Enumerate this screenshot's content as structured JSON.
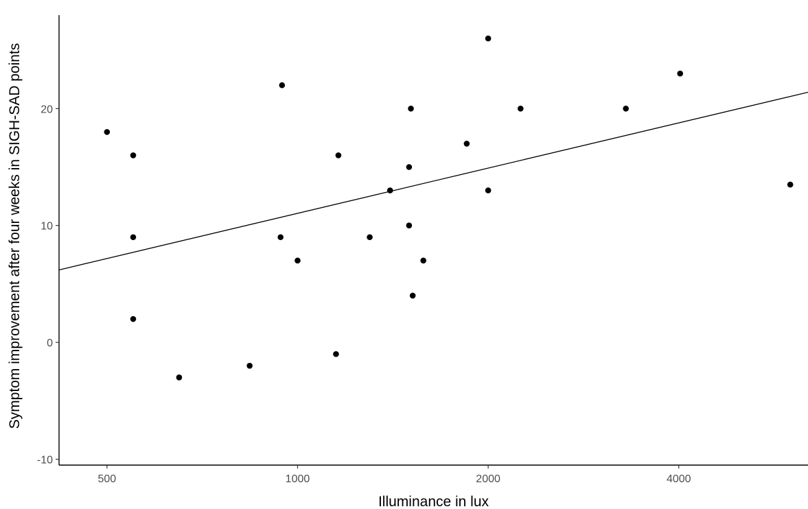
{
  "chart_data": {
    "type": "scatter",
    "title": "",
    "xlabel": "Illuminance in lux",
    "ylabel": "Symptom improvement after four weeks in SIGH-SAD points",
    "x_scale": "log2",
    "xlim": [
      420,
      6400
    ],
    "ylim": [
      -10.5,
      28
    ],
    "x_ticks": [
      500,
      1000,
      2000,
      4000
    ],
    "x_tick_labels": [
      "500",
      "1000",
      "2000",
      "4000"
    ],
    "y_ticks": [
      -10,
      0,
      10,
      20
    ],
    "y_tick_labels": [
      "-10",
      "0",
      "10",
      "20"
    ],
    "grid": false,
    "legend": "none",
    "point_color": "#000000",
    "line_color": "#000000",
    "points": [
      {
        "x": 500,
        "y": 18
      },
      {
        "x": 550,
        "y": 16
      },
      {
        "x": 550,
        "y": 9
      },
      {
        "x": 550,
        "y": 2
      },
      {
        "x": 650,
        "y": -3
      },
      {
        "x": 840,
        "y": -2
      },
      {
        "x": 945,
        "y": 22
      },
      {
        "x": 940,
        "y": 9
      },
      {
        "x": 1000,
        "y": 7
      },
      {
        "x": 1160,
        "y": 16
      },
      {
        "x": 1150,
        "y": -1
      },
      {
        "x": 1300,
        "y": 9
      },
      {
        "x": 1400,
        "y": 13
      },
      {
        "x": 1500,
        "y": 15
      },
      {
        "x": 1510,
        "y": 20
      },
      {
        "x": 1500,
        "y": 10
      },
      {
        "x": 1520,
        "y": 4
      },
      {
        "x": 1580,
        "y": 7
      },
      {
        "x": 1850,
        "y": 17
      },
      {
        "x": 2000,
        "y": 26
      },
      {
        "x": 2000,
        "y": 13
      },
      {
        "x": 2250,
        "y": 20
      },
      {
        "x": 3300,
        "y": 20
      },
      {
        "x": 4020,
        "y": 23
      },
      {
        "x": 6000,
        "y": 13.5
      }
    ],
    "fit_line": {
      "x": [
        420,
        6400
      ],
      "y": [
        6.2,
        21.4
      ]
    }
  }
}
